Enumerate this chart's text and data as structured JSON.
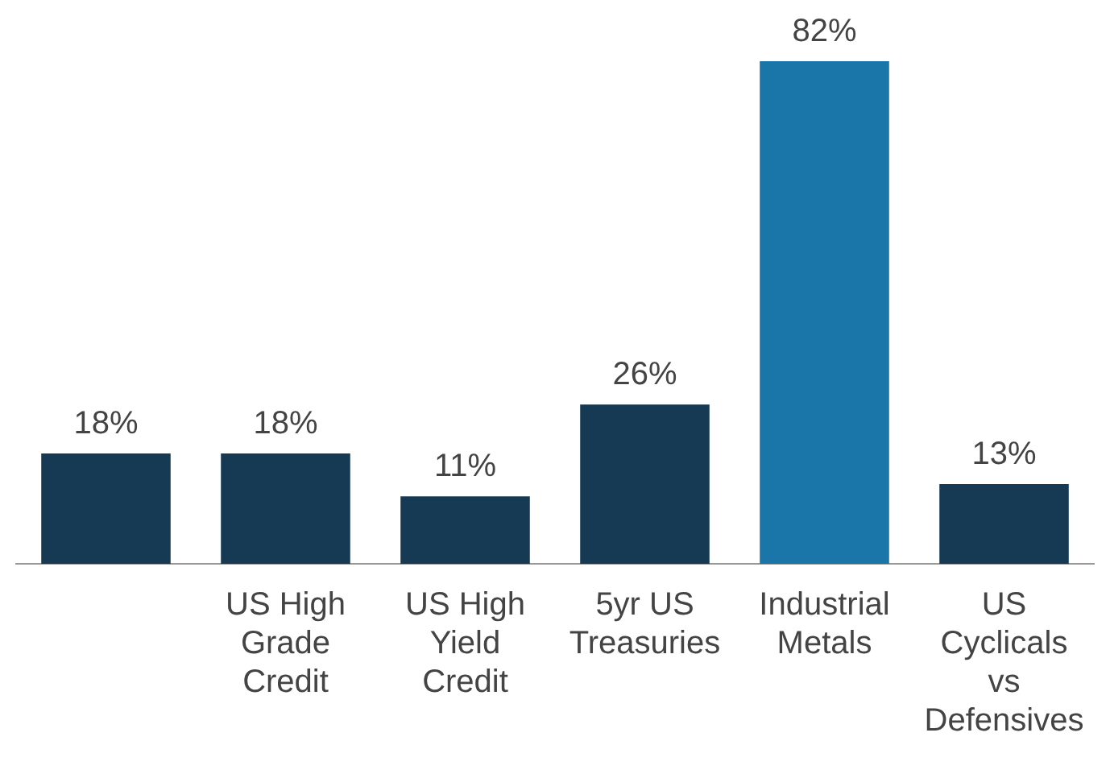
{
  "chart_data": {
    "type": "bar",
    "categories": [
      null,
      "US High Grade Credit",
      "US High Yield Credit",
      "5yr US Treasuries",
      "Industrial Metals",
      "US Cyclicals vs Defensives"
    ],
    "values": [
      18,
      18,
      11,
      26,
      82,
      13
    ],
    "colors": [
      "#173a54",
      "#173a54",
      "#173a54",
      "#173a54",
      "#1a75a8",
      "#173a54"
    ],
    "value_labels": [
      "18%",
      "18%",
      "11%",
      "26%",
      "82%",
      "13%"
    ],
    "tick_labels": "x",
    "grid": false,
    "legend": false
  }
}
